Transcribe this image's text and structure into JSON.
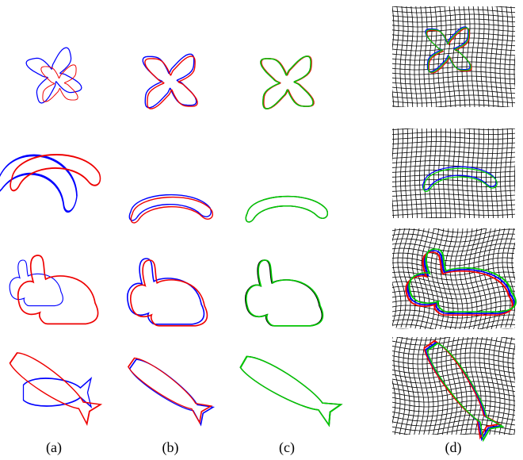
{
  "labels": [
    "(a)",
    "(b)",
    "(c)",
    "(d)"
  ]
}
